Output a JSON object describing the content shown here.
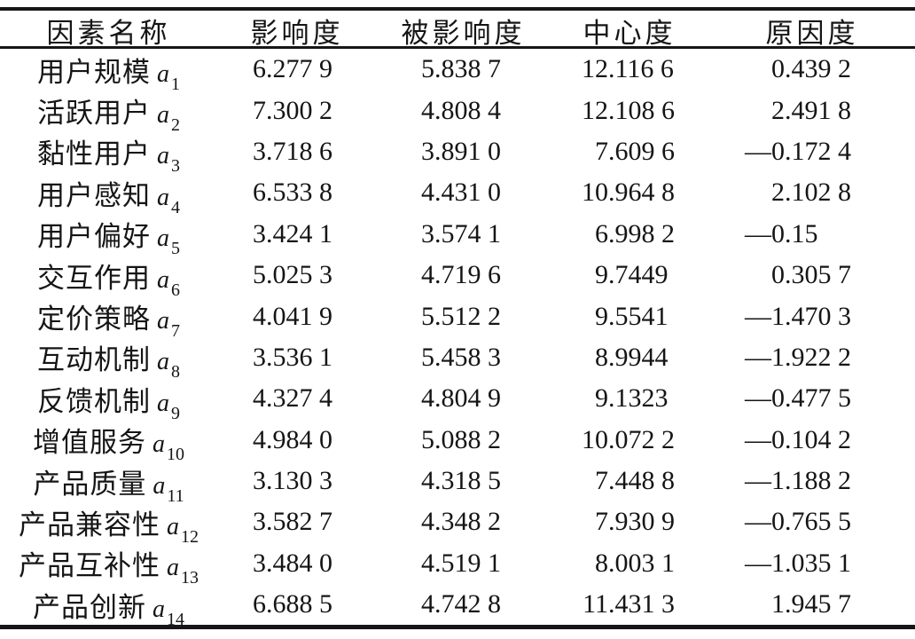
{
  "table": {
    "columns": [
      {
        "key": "factor",
        "label": "因素名称"
      },
      {
        "key": "influence",
        "label": "影响度"
      },
      {
        "key": "influenced",
        "label": "被影响度"
      },
      {
        "key": "centrality",
        "label": "中心度"
      },
      {
        "key": "cause",
        "label": "原因度"
      }
    ],
    "rows": [
      {
        "name": "用户规模",
        "symbol": "a",
        "sub": "1",
        "values": [
          "6.277 9",
          "5.838 7",
          "12.116 6",
          "0.439 2"
        ]
      },
      {
        "name": "活跃用户",
        "symbol": "a",
        "sub": "2",
        "values": [
          "7.300 2",
          "4.808 4",
          "12.108 6",
          "2.491 8"
        ]
      },
      {
        "name": "黏性用户",
        "symbol": "a",
        "sub": "3",
        "values": [
          "3.718 6",
          "3.891 0",
          "7.609 6",
          "—0.172 4"
        ]
      },
      {
        "name": "用户感知",
        "symbol": "a",
        "sub": "4",
        "values": [
          "6.533 8",
          "4.431 0",
          "10.964 8",
          "2.102 8"
        ]
      },
      {
        "name": "用户偏好",
        "symbol": "a",
        "sub": "5",
        "values": [
          "3.424 1",
          "3.574 1",
          "6.998 2",
          "—0.15"
        ]
      },
      {
        "name": "交互作用",
        "symbol": "a",
        "sub": "6",
        "values": [
          "5.025 3",
          "4.719 6",
          "9.7449",
          "0.305 7"
        ]
      },
      {
        "name": "定价策略",
        "symbol": "a",
        "sub": "7",
        "values": [
          "4.041 9",
          "5.512 2",
          "9.5541",
          "—1.470 3"
        ]
      },
      {
        "name": "互动机制",
        "symbol": "a",
        "sub": "8",
        "values": [
          "3.536 1",
          "5.458 3",
          "8.9944",
          "—1.922 2"
        ]
      },
      {
        "name": "反馈机制",
        "symbol": "a",
        "sub": "9",
        "values": [
          "4.327 4",
          "4.804 9",
          "9.1323",
          "—0.477 5"
        ]
      },
      {
        "name": "增值服务",
        "symbol": "a",
        "sub": "10",
        "values": [
          "4.984 0",
          "5.088 2",
          "10.072 2",
          "—0.104 2"
        ]
      },
      {
        "name": "产品质量",
        "symbol": "a",
        "sub": "11",
        "values": [
          "3.130 3",
          "4.318 5",
          "7.448 8",
          "—1.188 2"
        ]
      },
      {
        "name": "产品兼容性",
        "symbol": "a",
        "sub": "12",
        "values": [
          "3.582 7",
          "4.348 2",
          "7.930 9",
          "—0.765 5"
        ]
      },
      {
        "name": "产品互补性",
        "symbol": "a",
        "sub": "13",
        "values": [
          "3.484 0",
          "4.519 1",
          "8.003 1",
          "—1.035 1"
        ]
      },
      {
        "name": "产品创新",
        "symbol": "a",
        "sub": "14",
        "values": [
          "6.688 5",
          "4.742 8",
          "11.431 3",
          "1.945 7"
        ]
      }
    ]
  },
  "colors": {
    "rule": "#161616",
    "text": "#151515",
    "background": "#ffffff"
  }
}
